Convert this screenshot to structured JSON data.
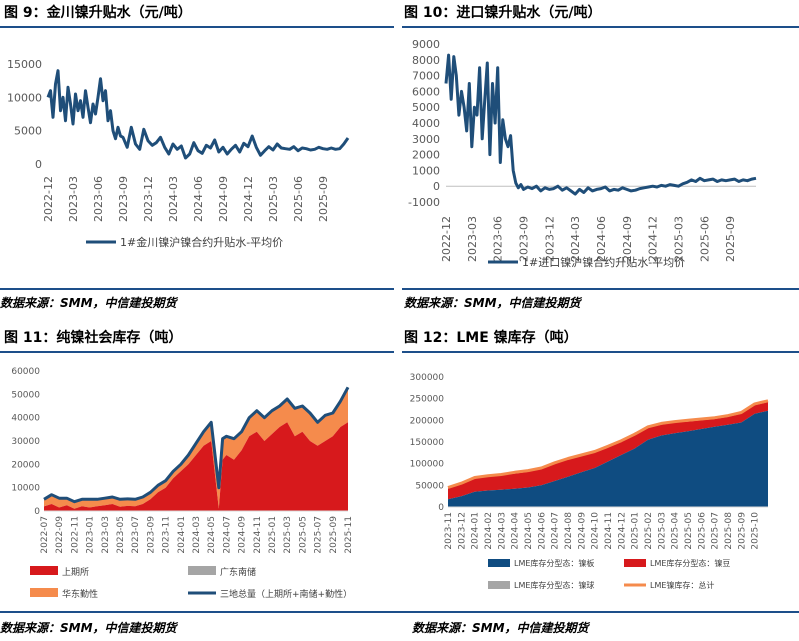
{
  "source_label": "数据来源：SMM，中信建投期货",
  "colors": {
    "navy": "#1f4e79",
    "red": "#d7191c",
    "orange": "#f58b4c",
    "gray": "#a5a5a5",
    "blue": "#0f4c81",
    "rule": "#1d4f8a"
  },
  "chart_data": [
    {
      "id": "fig9",
      "type": "line",
      "title": "图 9：金川镍升贴水（元/吨）",
      "xlabel": "",
      "ylabel": "",
      "ylim": [
        0,
        15000
      ],
      "yticks": [
        0,
        5000,
        10000,
        15000
      ],
      "x_start": 0,
      "x_end": 36,
      "x_ticks": [
        "2022-12",
        "2023-03",
        "2023-06",
        "2023-09",
        "2023-12",
        "2024-03",
        "2024-06",
        "2024-09",
        "2024-12",
        "2025-03",
        "2025-06",
        "2025-09"
      ],
      "legend": [
        "1#金川镍沪镍合约升贴水-平均价"
      ],
      "series": [
        {
          "name": "1#金川镍沪镍合约升贴水-平均价",
          "x": [
            0,
            0.3,
            0.6,
            0.9,
            1.2,
            1.5,
            1.8,
            2.1,
            2.4,
            2.7,
            3.0,
            3.3,
            3.6,
            3.9,
            4.2,
            4.5,
            4.8,
            5.1,
            5.4,
            5.7,
            6.0,
            6.3,
            6.6,
            6.9,
            7.2,
            7.5,
            7.8,
            8.1,
            8.4,
            8.7,
            9.0,
            9.5,
            10,
            10.5,
            11,
            11.5,
            12,
            12.5,
            13,
            13.5,
            14,
            14.5,
            15,
            15.5,
            16,
            16.5,
            17,
            17.5,
            18,
            18.5,
            19,
            19.5,
            20,
            20.5,
            21,
            21.5,
            22,
            22.5,
            23,
            23.5,
            24,
            24.5,
            25,
            25.5,
            26,
            26.5,
            27,
            27.5,
            28,
            28.5,
            29,
            29.5,
            30,
            30.5,
            31,
            31.5,
            32,
            32.5,
            33,
            33.5,
            34,
            34.5,
            35,
            35.5,
            36
          ],
          "values": [
            10000,
            11000,
            7000,
            12000,
            14000,
            8000,
            10000,
            6500,
            11500,
            9000,
            6000,
            10500,
            8000,
            9500,
            7000,
            11000,
            8500,
            6200,
            9000,
            7500,
            10000,
            12800,
            9500,
            11000,
            6500,
            8000,
            5000,
            3800,
            5500,
            4200,
            4000,
            2500,
            5500,
            3000,
            2200,
            5200,
            3500,
            2800,
            3200,
            4000,
            2500,
            1500,
            3000,
            2200,
            2700,
            900,
            1500,
            3200,
            2000,
            1600,
            2800,
            2400,
            3600,
            1800,
            2500,
            1500,
            2200,
            2800,
            1800,
            3100,
            2600,
            4200,
            2500,
            1300,
            2000,
            2600,
            2100,
            3000,
            2400,
            2300,
            2200,
            2600,
            2000,
            2400,
            2300,
            2100,
            2200,
            2500,
            2300,
            2200,
            2400,
            2200,
            2300,
            3000,
            3900
          ]
        }
      ]
    },
    {
      "id": "fig10",
      "type": "line",
      "title": "图 10：进口镍升贴水（元/吨）",
      "xlabel": "",
      "ylabel": "",
      "ylim": [
        -1000,
        9000
      ],
      "yticks": [
        -1000,
        0,
        1000,
        2000,
        3000,
        4000,
        5000,
        6000,
        7000,
        8000,
        9000
      ],
      "x_start": 0,
      "x_end": 36,
      "x_ticks": [
        "2022-12",
        "2023-03",
        "2023-06",
        "2023-09",
        "2023-12",
        "2024-03",
        "2024-06",
        "2024-09",
        "2024-12",
        "2025-03",
        "2025-06",
        "2025-09"
      ],
      "legend": [
        "1#进口镍沪镍合约升贴水-平均价"
      ],
      "series": [
        {
          "name": "1#进口镍沪镍合约升贴水-平均价",
          "x": [
            0,
            0.3,
            0.6,
            0.9,
            1.2,
            1.5,
            1.8,
            2.1,
            2.4,
            2.7,
            3.0,
            3.3,
            3.6,
            3.9,
            4.2,
            4.5,
            4.8,
            5.1,
            5.4,
            5.7,
            6.0,
            6.3,
            6.6,
            6.9,
            7.2,
            7.5,
            7.8,
            8.1,
            8.4,
            8.7,
            9.0,
            9.5,
            10,
            10.5,
            11,
            11.5,
            12,
            12.5,
            13,
            13.5,
            14,
            14.5,
            15,
            15.5,
            16,
            16.5,
            17,
            17.5,
            18,
            18.5,
            19,
            19.5,
            20,
            20.5,
            21,
            21.5,
            22,
            22.5,
            23,
            23.5,
            24,
            24.5,
            25,
            25.5,
            26,
            26.5,
            27,
            27.5,
            28,
            28.5,
            29,
            29.5,
            30,
            30.5,
            31,
            31.5,
            32,
            32.5,
            33,
            33.5,
            34,
            34.5,
            35,
            35.5,
            36
          ],
          "values": [
            6500,
            8300,
            5500,
            8200,
            7000,
            4500,
            6000,
            5000,
            3500,
            6500,
            2500,
            5000,
            4500,
            7500,
            3000,
            5500,
            7800,
            2000,
            6500,
            4000,
            7500,
            1500,
            4200,
            3000,
            2500,
            3200,
            1000,
            200,
            -100,
            100,
            -200,
            -50,
            -150,
            0,
            -300,
            -100,
            -200,
            -150,
            0,
            -250,
            -100,
            -300,
            -500,
            -200,
            -400,
            -100,
            -300,
            -200,
            -150,
            -50,
            -300,
            -200,
            -250,
            -100,
            -200,
            -300,
            -250,
            -150,
            -100,
            -50,
            0,
            -50,
            50,
            0,
            100,
            50,
            0,
            150,
            250,
            400,
            300,
            500,
            350,
            400,
            450,
            300,
            400,
            350,
            400,
            450,
            300,
            400,
            350,
            450,
            500
          ]
        }
      ]
    },
    {
      "id": "fig11",
      "type": "area",
      "title": "图 11：纯镍社会库存（吨）",
      "ylim": [
        0,
        60000
      ],
      "yticks": [
        0,
        10000,
        20000,
        30000,
        40000,
        50000,
        60000
      ],
      "x_start": 0,
      "x_end": 40,
      "x_ticks": [
        "2022-07",
        "2022-09",
        "2022-11",
        "2023-01",
        "2023-03",
        "2023-05",
        "2023-07",
        "2023-09",
        "2023-11",
        "2024-01",
        "2024-03",
        "2024-05",
        "2024-07",
        "2024-09",
        "2024-11",
        "2025-01",
        "2025-03",
        "2025-05",
        "2025-07",
        "2025-09",
        "2025-11"
      ],
      "legend": [
        "上期所",
        "广东南储",
        "华东勤性",
        "三地总量（上期所+南储+勤性）"
      ],
      "x": [
        0,
        1,
        2,
        3,
        4,
        5,
        6,
        7,
        8,
        9,
        10,
        11,
        12,
        13,
        14,
        15,
        16,
        17,
        18,
        19,
        20,
        21,
        22,
        23,
        23.5,
        24,
        25,
        26,
        27,
        28,
        29,
        30,
        31,
        32,
        33,
        34,
        35,
        36,
        37,
        38,
        39,
        40
      ],
      "series": [
        {
          "name": "上期所",
          "values": [
            2000,
            3000,
            1500,
            2500,
            1000,
            2000,
            1500,
            2000,
            2500,
            3000,
            1800,
            2200,
            2000,
            3000,
            5000,
            8000,
            10000,
            14000,
            17000,
            20000,
            24000,
            28000,
            30000,
            1000,
            22000,
            24000,
            22000,
            26000,
            32000,
            34000,
            30000,
            33000,
            36000,
            38000,
            32000,
            34000,
            30000,
            28000,
            30000,
            32000,
            36000,
            38000
          ]
        },
        {
          "name": "广东南储",
          "values": [
            0,
            0,
            0,
            0,
            0,
            0,
            0,
            0,
            0,
            0,
            0,
            0,
            0,
            0,
            0,
            0,
            0,
            0,
            0,
            0,
            0,
            0,
            0,
            0,
            0,
            0,
            0,
            0,
            0,
            0,
            0,
            0,
            0,
            0,
            0,
            0,
            0,
            0,
            0,
            0,
            0,
            0
          ]
        },
        {
          "name": "华东勤性",
          "values": [
            3000,
            4000,
            4000,
            3000,
            3000,
            3000,
            3500,
            3000,
            3000,
            3000,
            3200,
            3000,
            3000,
            3000,
            3000,
            3000,
            3000,
            3000,
            3000,
            4000,
            5000,
            6000,
            8000,
            9000,
            9000,
            8000,
            9000,
            8000,
            8000,
            9000,
            10000,
            10000,
            9000,
            10000,
            12000,
            11000,
            12000,
            10000,
            11000,
            10000,
            11000,
            15000
          ]
        },
        {
          "name": "三地总量（上期所+南储+勤性）",
          "values": [
            5000,
            7000,
            5500,
            5500,
            4000,
            5000,
            5000,
            5000,
            5500,
            6000,
            5000,
            5200,
            5000,
            6000,
            8000,
            11000,
            13000,
            17000,
            20000,
            24000,
            29000,
            34000,
            38000,
            10000,
            31000,
            32000,
            31000,
            34000,
            40000,
            43000,
            40000,
            43000,
            45000,
            48000,
            44000,
            45000,
            42000,
            38000,
            41000,
            42000,
            47000,
            53000
          ]
        }
      ]
    },
    {
      "id": "fig12",
      "type": "area",
      "title": "图 12：LME 镍库存（吨）",
      "ylim": [
        0,
        300000
      ],
      "yticks": [
        0,
        50000,
        100000,
        150000,
        200000,
        250000,
        300000
      ],
      "x_start": 0,
      "x_end": 24,
      "x_ticks": [
        "2023-11",
        "2023-12",
        "2024-01",
        "2024-02",
        "2024-03",
        "2024-04",
        "2024-05",
        "2024-06",
        "2024-07",
        "2024-08",
        "2024-09",
        "2024-10",
        "2024-11",
        "2024-12",
        "2025-01",
        "2025-02",
        "2025-03",
        "2025-04",
        "2025-05",
        "2025-06",
        "2025-07",
        "2025-08",
        "2025-09",
        "2025-10"
      ],
      "legend": [
        "LME库存分型态：镍板",
        "LME库存分型态：镍豆",
        "LME库存分型态：镍球",
        "LME镍库存：总计"
      ],
      "x": [
        0,
        1,
        2,
        3,
        4,
        5,
        6,
        7,
        8,
        9,
        10,
        11,
        12,
        13,
        14,
        15,
        16,
        17,
        18,
        19,
        20,
        21,
        22,
        23,
        24
      ],
      "series": [
        {
          "name": "LME库存分型态：镍板",
          "values": [
            18000,
            25000,
            35000,
            38000,
            40000,
            42000,
            45000,
            50000,
            60000,
            70000,
            80000,
            90000,
            105000,
            120000,
            135000,
            155000,
            165000,
            170000,
            175000,
            180000,
            185000,
            190000,
            195000,
            215000,
            222000
          ]
        },
        {
          "name": "LME库存分型态：镍豆",
          "values": [
            25000,
            28000,
            30000,
            32000,
            33000,
            35000,
            36000,
            38000,
            40000,
            40000,
            38000,
            35000,
            32000,
            30000,
            30000,
            28000,
            25000,
            25000,
            22000,
            20000,
            18000,
            18000,
            20000,
            20000,
            20000
          ]
        },
        {
          "name": "LME库存分型态：镍球",
          "values": [
            0,
            0,
            0,
            0,
            0,
            0,
            0,
            0,
            0,
            0,
            0,
            0,
            0,
            0,
            0,
            0,
            0,
            0,
            0,
            0,
            0,
            0,
            0,
            0,
            0
          ]
        },
        {
          "name": "LME镍库存：总计",
          "values": [
            45000,
            55000,
            68000,
            72000,
            75000,
            80000,
            84000,
            90000,
            102000,
            112000,
            120000,
            128000,
            140000,
            153000,
            168000,
            185000,
            193000,
            197000,
            200000,
            203000,
            206000,
            211000,
            218000,
            238000,
            245000
          ]
        }
      ]
    }
  ]
}
